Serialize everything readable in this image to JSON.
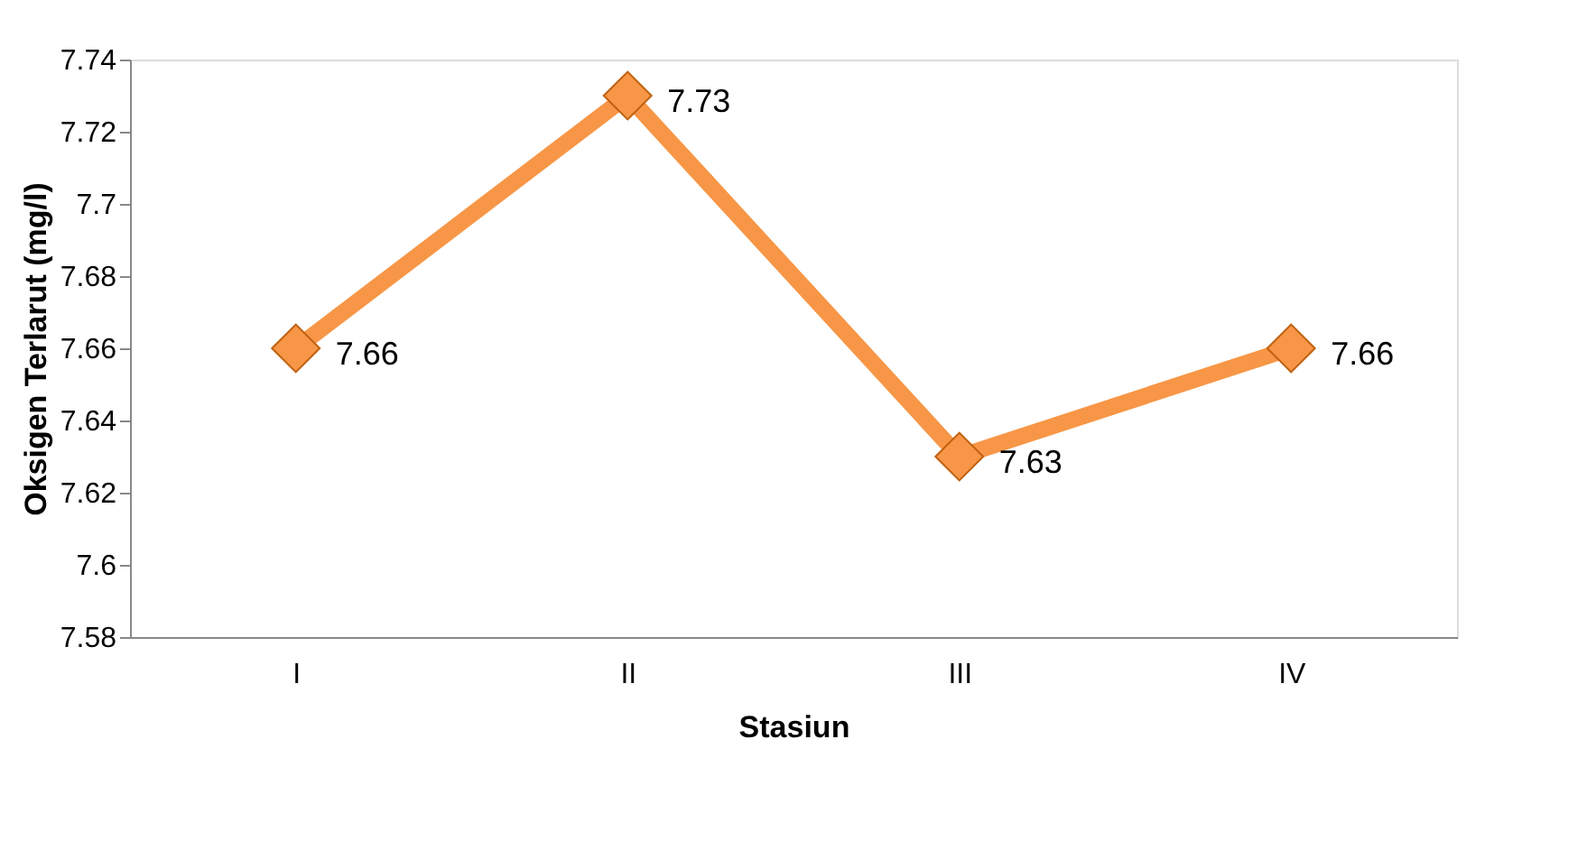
{
  "chart_data": {
    "type": "line",
    "xlabel": "Stasiun",
    "ylabel": "Oksigen Terlarut (mg/l)",
    "categories": [
      "I",
      "II",
      "III",
      "IV"
    ],
    "series": [
      {
        "color": "#f79646",
        "values": [
          7.66,
          7.73,
          7.63,
          7.66
        ]
      }
    ],
    "ylim": [
      7.58,
      7.74
    ],
    "yticks": [
      7.58,
      7.6,
      7.62,
      7.64,
      7.66,
      7.68,
      7.7,
      7.72,
      7.74
    ],
    "grid": false,
    "legend": false,
    "marker": "diamond",
    "line_style": "solid",
    "data_labels": true
  }
}
